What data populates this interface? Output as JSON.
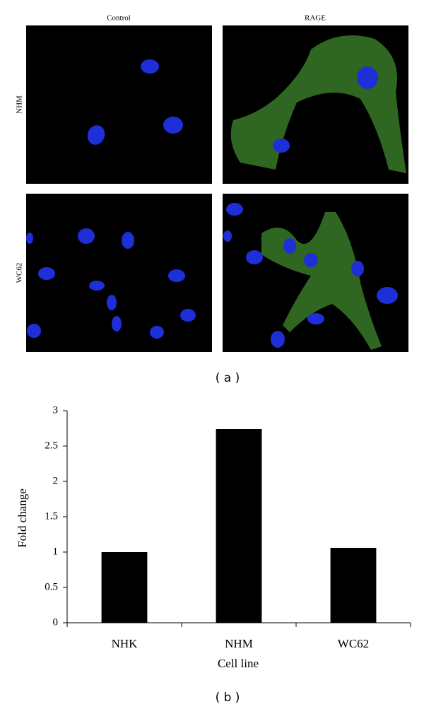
{
  "panel_a": {
    "columns": [
      "Control",
      "RAGE"
    ],
    "rows": [
      "NHM",
      "WC62"
    ],
    "caption": "( a )"
  },
  "chart_data": {
    "type": "bar",
    "caption": "( b )",
    "xlabel": "Cell line",
    "ylabel": "Fold change",
    "categories": [
      "NHK",
      "NHM",
      "WC62"
    ],
    "values": [
      1.0,
      2.74,
      1.06
    ],
    "color": "#000000",
    "ylim": [
      0,
      3
    ],
    "yticks": [
      0,
      0.5,
      1,
      1.5,
      2,
      2.5,
      3
    ],
    "grid": false
  }
}
